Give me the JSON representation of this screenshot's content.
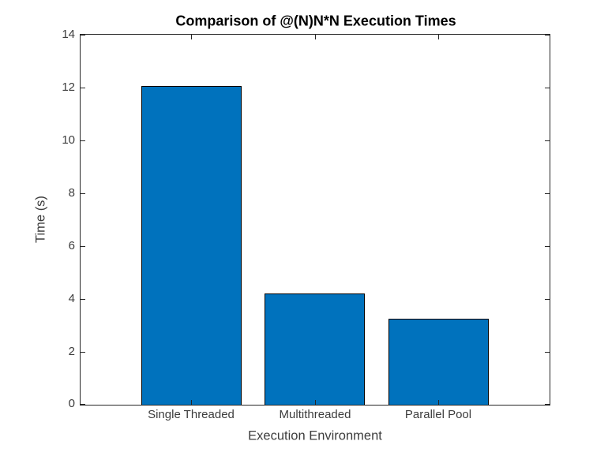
{
  "chart_data": {
    "type": "bar",
    "title": "Comparison of @(N)N*N Execution Times",
    "xlabel": "Execution Environment",
    "ylabel": "Time (s)",
    "categories": [
      "Single Threaded",
      "Multithreaded",
      "Parallel Pool"
    ],
    "values": [
      12.05,
      4.2,
      3.25
    ],
    "ylim": [
      0,
      14
    ],
    "yticks": [
      0,
      2,
      4,
      6,
      8,
      10,
      12,
      14
    ],
    "grid": false,
    "legend_position": "none",
    "bar_color": "#0072BD",
    "bar_edge_color": "#000000",
    "axis_color": "#262626",
    "label_color": "#3c3c3c",
    "title_color": "#000000",
    "background_color": "#ffffff"
  }
}
